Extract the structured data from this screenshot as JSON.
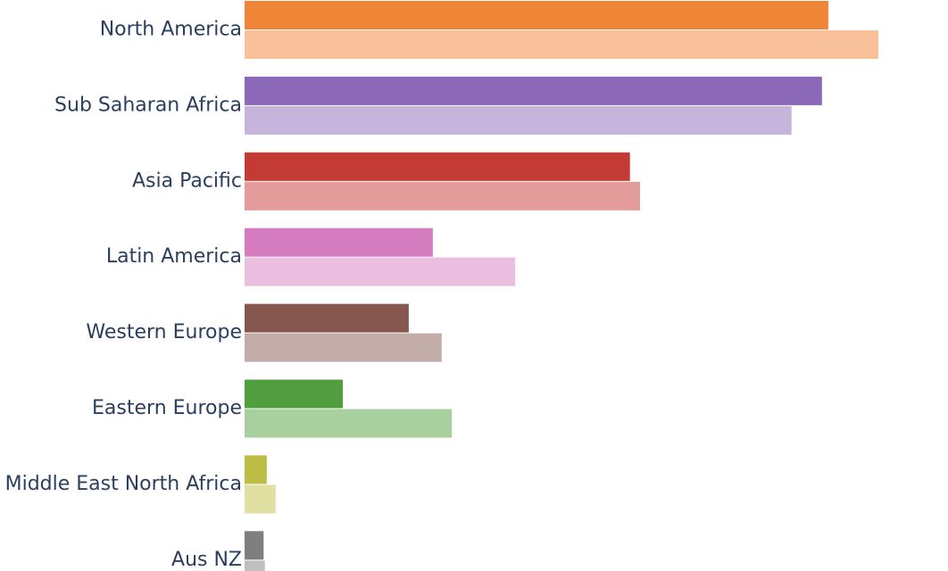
{
  "chart_data": {
    "type": "bar",
    "orientation": "horizontal",
    "title": "",
    "xlabel": "",
    "ylabel": "",
    "grid": false,
    "xlim": [
      0,
      100
    ],
    "categories": [
      "North America",
      "Sub Saharan Africa",
      "Asia Pacific",
      "Latin America",
      "Western Europe",
      "Eastern Europe",
      "Middle East North Africa",
      "Aus NZ"
    ],
    "series": [
      {
        "values": [
          92.1,
          91.1,
          60.8,
          29.7,
          25.9,
          15.5,
          3.5,
          3.0
        ]
      },
      {
        "values": [
          100,
          86.3,
          62.4,
          42.7,
          31.1,
          32.7,
          4.9,
          3.2
        ]
      }
    ],
    "colors": {
      "primary": [
        "#ef8637",
        "#8c69b8",
        "#c43a34",
        "#d57bbf",
        "#85574e",
        "#509e3d",
        "#bcbd45",
        "#7f7f7f"
      ],
      "secondary": [
        "#f8c19b",
        "#c6b4dc",
        "#e39c99",
        "#eabedf",
        "#c2aca7",
        "#a8d09e",
        "#e0e0a2",
        "#bfbfbf"
      ]
    }
  }
}
